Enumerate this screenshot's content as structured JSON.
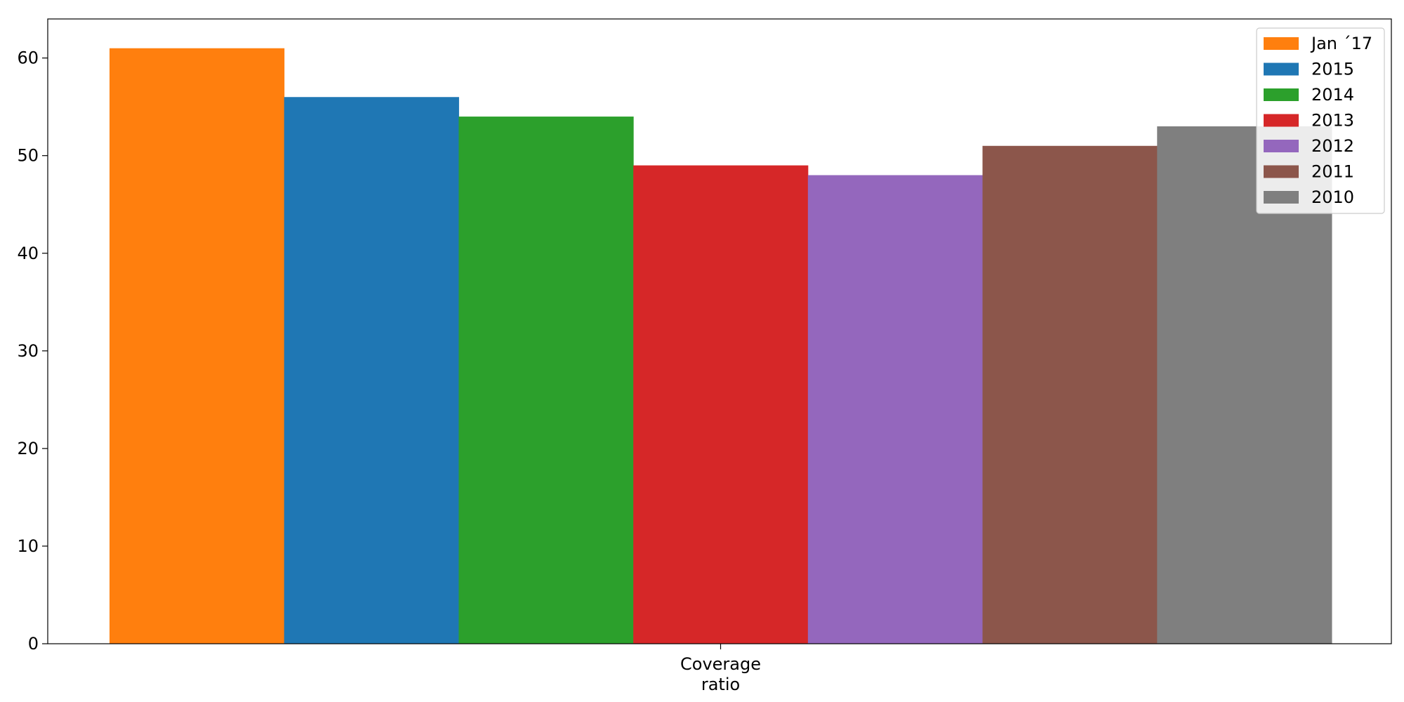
{
  "chart_data": {
    "type": "bar",
    "categories": [
      "Coverage\nratio"
    ],
    "category_lines": [
      "Coverage",
      "ratio"
    ],
    "series": [
      {
        "name": "Jan ´17",
        "values": [
          61
        ],
        "color": "#ff7f0e"
      },
      {
        "name": "2015",
        "values": [
          56
        ],
        "color": "#1f77b4"
      },
      {
        "name": "2014",
        "values": [
          54
        ],
        "color": "#2ca02c"
      },
      {
        "name": "2013",
        "values": [
          49
        ],
        "color": "#d62728"
      },
      {
        "name": "2012",
        "values": [
          48
        ],
        "color": "#9467bd"
      },
      {
        "name": "2011",
        "values": [
          51
        ],
        "color": "#8c564b"
      },
      {
        "name": "2010",
        "values": [
          53
        ],
        "color": "#7f7f7f"
      }
    ],
    "yticks": [
      0,
      10,
      20,
      30,
      40,
      50,
      60
    ],
    "ylim": [
      0,
      64
    ],
    "grid": false,
    "legend_position": "top-right"
  }
}
